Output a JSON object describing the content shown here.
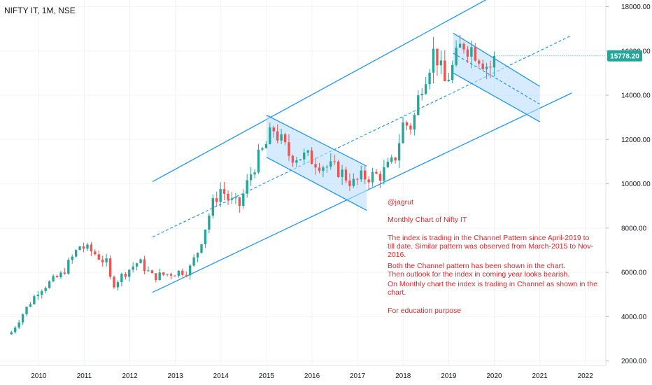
{
  "symbol_title": "NIFTY IT, 1M, NSE",
  "notes": {
    "author": "@jagrut",
    "subtitle": "Monthly Chart of Nifty IT",
    "body": "The index is trading in the Channel Pattern since April-2019 to till date. Similar pattern was observed from March-2015 to Nov-2016.",
    "line2": "Both the Channel pattern has been shown in the chart.",
    "line3": "Then outlook for the index in coming year looks bearish.",
    "line4": "On Monthly chart the index is trading in Channel as shown in the chart.",
    "footer": "For education purpose"
  },
  "colors": {
    "up": "#26a69a",
    "down": "#ef5350",
    "channel": "#2196f3",
    "channel_fill": "#bbdefb",
    "price_label_bg": "#26a69a",
    "note_text": "#e3262b"
  },
  "chart_data": {
    "type": "candlestick",
    "interval": "1M",
    "last_price_label": "15778.20",
    "y_ticks": [
      "18000.00",
      "16000.00",
      "14000.00",
      "12000.00",
      "10000.00",
      "8000.00",
      "6000.00",
      "4000.00",
      "2000.00"
    ],
    "x_ticks": [
      "2010",
      "2011",
      "2012",
      "2013",
      "2014",
      "2015",
      "2016",
      "2017",
      "2018",
      "2019",
      "2020",
      "2021",
      "2022"
    ],
    "ylim": [
      1800,
      18300
    ],
    "anchors": [
      {
        "t": 2009.4,
        "v": 3300
      },
      {
        "t": 2009.7,
        "v": 4300
      },
      {
        "t": 2010.0,
        "v": 5200
      },
      {
        "t": 2010.5,
        "v": 5900
      },
      {
        "t": 2010.9,
        "v": 7200
      },
      {
        "t": 2011.2,
        "v": 6900
      },
      {
        "t": 2011.5,
        "v": 6400
      },
      {
        "t": 2011.6,
        "v": 5400
      },
      {
        "t": 2011.9,
        "v": 6000
      },
      {
        "t": 2012.2,
        "v": 6500
      },
      {
        "t": 2012.5,
        "v": 5800
      },
      {
        "t": 2013.0,
        "v": 6000
      },
      {
        "t": 2013.3,
        "v": 6100
      },
      {
        "t": 2013.5,
        "v": 7000
      },
      {
        "t": 2013.8,
        "v": 9000
      },
      {
        "t": 2014.0,
        "v": 9800
      },
      {
        "t": 2014.2,
        "v": 9200
      },
      {
        "t": 2014.4,
        "v": 9000
      },
      {
        "t": 2014.7,
        "v": 10700
      },
      {
        "t": 2015.0,
        "v": 11800
      },
      {
        "t": 2015.15,
        "v": 12500
      },
      {
        "t": 2015.5,
        "v": 11300
      },
      {
        "t": 2015.9,
        "v": 11200
      },
      {
        "t": 2016.3,
        "v": 10800
      },
      {
        "t": 2016.6,
        "v": 10600
      },
      {
        "t": 2016.9,
        "v": 10000
      },
      {
        "t": 2017.1,
        "v": 10300
      },
      {
        "t": 2017.5,
        "v": 10400
      },
      {
        "t": 2017.8,
        "v": 11000
      },
      {
        "t": 2018.0,
        "v": 12700
      },
      {
        "t": 2018.2,
        "v": 12600
      },
      {
        "t": 2018.4,
        "v": 14500
      },
      {
        "t": 2018.7,
        "v": 16100
      },
      {
        "t": 2018.9,
        "v": 14500
      },
      {
        "t": 2019.1,
        "v": 15300
      },
      {
        "t": 2019.3,
        "v": 16400
      },
      {
        "t": 2019.6,
        "v": 16000
      },
      {
        "t": 2019.9,
        "v": 15200
      },
      {
        "t": 2020.0,
        "v": 15778.2
      }
    ],
    "channels": [
      {
        "name": "main",
        "upper": [
          [
            2012.5,
            10100
          ],
          [
            2019.9,
            18400
          ]
        ],
        "lower": [
          [
            2012.5,
            5100
          ],
          [
            2021.7,
            14100
          ]
        ],
        "mid": [
          [
            2012.5,
            7600
          ],
          [
            2021.7,
            16700
          ]
        ]
      },
      {
        "name": "2015-2016",
        "upper": [
          [
            2015.0,
            13100
          ],
          [
            2017.2,
            10800
          ]
        ],
        "lower": [
          [
            2015.0,
            11200
          ],
          [
            2017.2,
            8800
          ]
        ]
      },
      {
        "name": "2019-2020",
        "upper": [
          [
            2019.1,
            16800
          ],
          [
            2021.0,
            14400
          ]
        ],
        "lower": [
          [
            2019.1,
            15000
          ],
          [
            2021.0,
            12800
          ]
        ],
        "mid": [
          [
            2019.1,
            15900
          ],
          [
            2021.0,
            13600
          ]
        ]
      }
    ]
  }
}
